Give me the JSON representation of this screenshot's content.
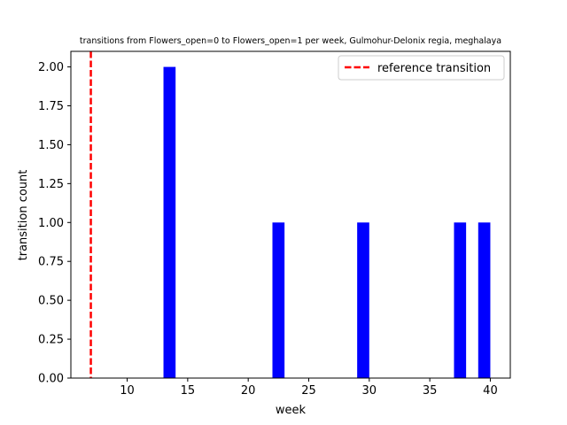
{
  "chart_data": {
    "type": "bar",
    "title": "transitions from Flowers_open=0 to Flowers_open=1 per week, Gulmohur-Delonix regia, meghalaya",
    "xlabel": "week",
    "ylabel": "transition count",
    "xlim": [
      5.35,
      41.65
    ],
    "ylim": [
      0,
      2.1
    ],
    "xticks": [
      10,
      15,
      20,
      25,
      30,
      35,
      40
    ],
    "yticks": [
      0.0,
      0.25,
      0.5,
      0.75,
      1.0,
      1.25,
      1.5,
      1.75,
      2.0
    ],
    "ytick_labels": [
      "0.00",
      "0.25",
      "0.50",
      "0.75",
      "1.00",
      "1.25",
      "1.50",
      "1.75",
      "2.00"
    ],
    "bar_width": 1,
    "bars": [
      {
        "x": 13.5,
        "value": 2
      },
      {
        "x": 22.5,
        "value": 1
      },
      {
        "x": 29.5,
        "value": 1
      },
      {
        "x": 37.5,
        "value": 1
      },
      {
        "x": 39.5,
        "value": 1
      }
    ],
    "bar_color": "#0000ff",
    "reference_line": {
      "x": 7,
      "label": "reference transition",
      "color": "#ff0000",
      "style": "dashed"
    },
    "legend": {
      "position": "top-right",
      "entries": [
        "reference transition"
      ]
    },
    "grid": false
  }
}
